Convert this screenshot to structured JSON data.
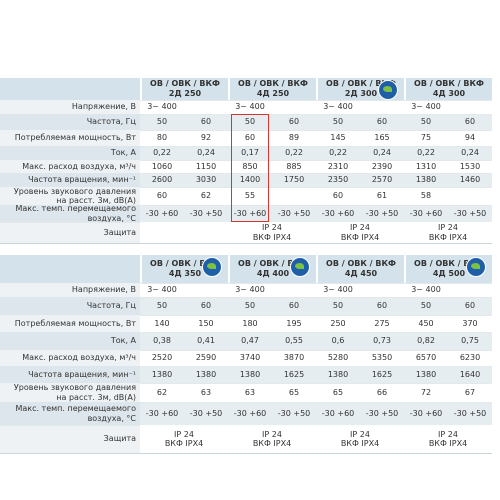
{
  "tables": [
    {
      "models": [
        {
          "name": "ОВ / ОВК / ВКФ",
          "size": "2Д 250",
          "erp": false
        },
        {
          "name": "ОВ / ОВК / ВКФ",
          "size": "4Д 250",
          "erp": false
        },
        {
          "name": "ОВ / ОВК / ВКФ",
          "size": "2Д 300",
          "erp": true
        },
        {
          "name": "ОВ / ОВК / ВКФ",
          "size": "4Д 300",
          "erp": false
        }
      ],
      "rows": [
        {
          "label": "Напряжение, В",
          "values": [
            [
              "3~ 400"
            ],
            [
              "3~ 400"
            ],
            [
              "3~ 400"
            ],
            [
              "3~ 400"
            ]
          ]
        },
        {
          "label": "Частота, Гц",
          "values": [
            [
              "50",
              "60"
            ],
            [
              "50",
              "60"
            ],
            [
              "50",
              "60"
            ],
            [
              "50",
              "60"
            ]
          ]
        },
        {
          "label": "Потребляемая мощность, Вт",
          "values": [
            [
              "80",
              "92"
            ],
            [
              "60",
              "89"
            ],
            [
              "145",
              "165"
            ],
            [
              "75",
              "94"
            ]
          ]
        },
        {
          "label": "Ток, А",
          "values": [
            [
              "0,22",
              "0,24"
            ],
            [
              "0,17",
              "0,22"
            ],
            [
              "0,22",
              "0,24"
            ],
            [
              "0,22",
              "0,24"
            ]
          ]
        },
        {
          "label": "Макс. расход воздуха, м³/ч",
          "values": [
            [
              "1060",
              "1150"
            ],
            [
              "850",
              "885"
            ],
            [
              "2310",
              "2390"
            ],
            [
              "1310",
              "1530"
            ]
          ]
        },
        {
          "label": "Частота вращения, мин⁻¹",
          "values": [
            [
              "2600",
              "3030"
            ],
            [
              "1400",
              "1750"
            ],
            [
              "2350",
              "2570"
            ],
            [
              "1380",
              "1460"
            ]
          ]
        },
        {
          "label": "Уровень звукового давления\nна расст. 3м, dB(A)",
          "values": [
            [
              "60",
              "62"
            ],
            [
              "55"
            ],
            [
              "60",
              "61"
            ],
            [
              "58"
            ]
          ]
        },
        {
          "label": "Макс. темп. перемещаемого воздуха, °С",
          "values": [
            [
              "-30 +60",
              "-30 +50"
            ],
            [
              "-30 +60",
              "-30 +50"
            ],
            [
              "-30 +60",
              "-30 +50"
            ],
            [
              "-30 +60",
              "-30 +50"
            ]
          ]
        }
      ],
      "protection_label": "Защита",
      "protection": [
        [],
        [
          "IP 24",
          "ВКФ IPX4"
        ],
        [
          "IP 24",
          "ВКФ IPX4"
        ],
        [
          "IP 24",
          "ВКФ IPX4"
        ]
      ]
    },
    {
      "models": [
        {
          "name": "ОВ / ОВК / ВКФ",
          "size": "4Д 350",
          "erp": true
        },
        {
          "name": "ОВ / ОВК / ВКФ",
          "size": "4Д 400",
          "erp": true
        },
        {
          "name": "ОВ / ОВК / ВКФ",
          "size": "4Д 450",
          "erp": false
        },
        {
          "name": "ОВ / ОВК / ВКФ",
          "size": "4Д 500",
          "erp": true
        }
      ],
      "rows": [
        {
          "label": "Напряжение, В",
          "values": [
            [
              "3~ 400"
            ],
            [
              "3~ 400"
            ],
            [
              "3~ 400"
            ],
            [
              "3~ 400"
            ]
          ]
        },
        {
          "label": "Частота, Гц",
          "values": [
            [
              "50",
              "60"
            ],
            [
              "50",
              "60"
            ],
            [
              "50",
              "60"
            ],
            [
              "50",
              "60"
            ]
          ]
        },
        {
          "label": "Потребляемая мощность, Вт",
          "values": [
            [
              "140",
              "150"
            ],
            [
              "180",
              "195"
            ],
            [
              "250",
              "275"
            ],
            [
              "450",
              "370"
            ]
          ]
        },
        {
          "label": "Ток, А",
          "values": [
            [
              "0,38",
              "0,41"
            ],
            [
              "0,47",
              "0,55"
            ],
            [
              "0,6",
              "0,73"
            ],
            [
              "0,82",
              "0,75"
            ]
          ]
        },
        {
          "label": "Макс. расход воздуха, м³/ч",
          "values": [
            [
              "2520",
              "2590"
            ],
            [
              "3740",
              "3870"
            ],
            [
              "5280",
              "5350"
            ],
            [
              "6570",
              "6230"
            ]
          ]
        },
        {
          "label": "Частота вращения, мин⁻¹",
          "values": [
            [
              "1380",
              "1380"
            ],
            [
              "1380",
              "1625"
            ],
            [
              "1380",
              "1625"
            ],
            [
              "1380",
              "1640"
            ]
          ]
        },
        {
          "label": "Уровень звукового давления\nна расст. 3м, dB(A)",
          "values": [
            [
              "62",
              "63"
            ],
            [
              "63",
              "65"
            ],
            [
              "65",
              "66"
            ],
            [
              "72",
              "67"
            ]
          ]
        },
        {
          "label": "Макс. темп. перемещаемого воздуха, °С",
          "values": [
            [
              "-30 +60",
              "-30 +50"
            ],
            [
              "-30 +60",
              "-30 +50"
            ],
            [
              "-30 +60",
              "-30 +50"
            ],
            [
              "-30 +60",
              "-30 +50"
            ]
          ]
        }
      ],
      "protection_label": "Защита",
      "protection": [
        [
          "IP 24",
          "ВКФ IPX4"
        ],
        [
          "IP 24",
          "ВКФ IPX4"
        ],
        [
          "IP 24",
          "ВКФ IPX4"
        ],
        [
          "IP 24",
          "ВКФ IPX4"
        ]
      ]
    }
  ]
}
